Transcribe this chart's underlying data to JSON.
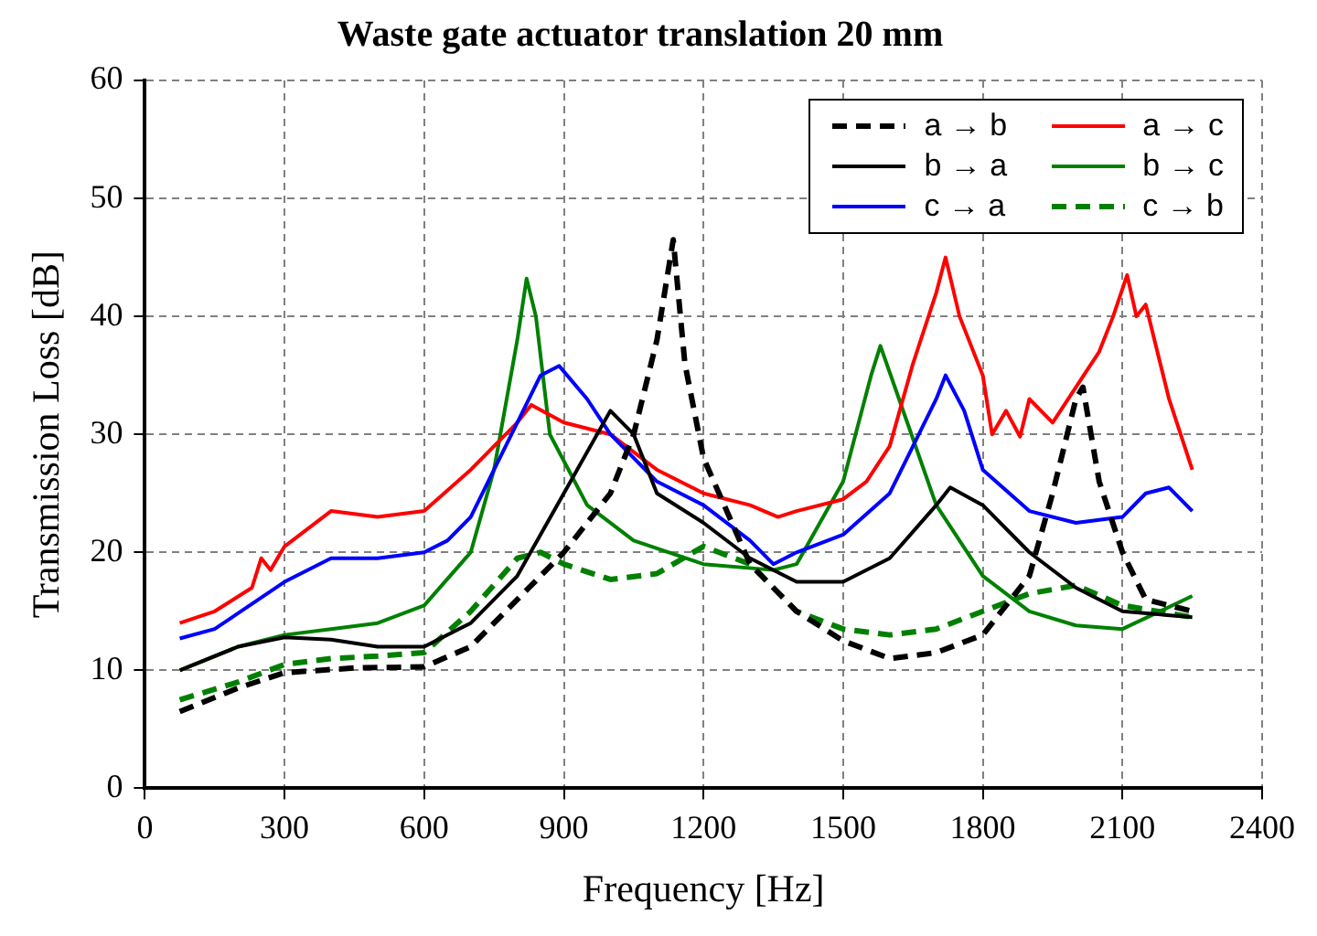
{
  "chart_data": {
    "type": "line",
    "title": "Waste gate actuator translation 20 mm",
    "xlabel": "Frequency [Hz]",
    "ylabel": "Transmission Loss [dB]",
    "xlim": [
      0,
      2400
    ],
    "xticks": [
      0,
      300,
      600,
      900,
      1200,
      1500,
      1800,
      2100,
      2400
    ],
    "ylim": [
      0,
      60
    ],
    "yticks": [
      0,
      10,
      20,
      30,
      40,
      50,
      60
    ],
    "grid": true,
    "legend": "top right",
    "marker": "none",
    "series": [
      {
        "name": "a → b",
        "color": "#000000",
        "line_style": "dashed",
        "x": [
          75,
          200,
          300,
          450,
          600,
          700,
          800,
          900,
          1000,
          1050,
          1100,
          1135,
          1160,
          1200,
          1300,
          1400,
          1500,
          1600,
          1700,
          1800,
          1900,
          1950,
          2000,
          2015,
          2050,
          2100,
          2150,
          2250
        ],
        "values": [
          6.5,
          8.5,
          9.8,
          10.2,
          10.3,
          12,
          16,
          20,
          25,
          30,
          38,
          46.5,
          36,
          28,
          19,
          15,
          12.5,
          11,
          11.5,
          13,
          18,
          25,
          33,
          34,
          26,
          20,
          16,
          15
        ]
      },
      {
        "name": "b → a",
        "color": "#000000",
        "line_style": "solid",
        "x": [
          75,
          200,
          300,
          400,
          500,
          600,
          700,
          800,
          900,
          1000,
          1050,
          1100,
          1200,
          1300,
          1400,
          1500,
          1600,
          1700,
          1730,
          1800,
          1900,
          2000,
          2100,
          2250
        ],
        "values": [
          10,
          12,
          12.8,
          12.6,
          12,
          12,
          14,
          18,
          25,
          32,
          30,
          25,
          22.5,
          19.5,
          17.5,
          17.5,
          19.5,
          24,
          25.5,
          24,
          20,
          17,
          15,
          14.5
        ]
      },
      {
        "name": "c → a",
        "color": "#0000ff",
        "line_style": "solid",
        "x": [
          75,
          150,
          300,
          400,
          500,
          600,
          650,
          700,
          750,
          800,
          850,
          890,
          950,
          1000,
          1100,
          1200,
          1300,
          1350,
          1400,
          1500,
          1600,
          1700,
          1720,
          1760,
          1800,
          1900,
          2000,
          2100,
          2150,
          2200,
          2250
        ],
        "values": [
          12.7,
          13.5,
          17.5,
          19.5,
          19.5,
          20,
          21,
          23,
          27,
          31,
          35,
          35.8,
          33,
          30,
          26,
          24,
          21,
          19,
          20,
          21.5,
          25,
          33,
          35,
          32,
          27,
          23.5,
          22.5,
          23,
          25,
          25.5,
          23.5
        ]
      },
      {
        "name": "a → c",
        "color": "#ff0000",
        "line_style": "solid",
        "x": [
          75,
          150,
          230,
          250,
          270,
          300,
          400,
          500,
          600,
          700,
          800,
          830,
          900,
          1000,
          1100,
          1200,
          1300,
          1360,
          1400,
          1500,
          1550,
          1600,
          1650,
          1700,
          1720,
          1750,
          1800,
          1820,
          1850,
          1880,
          1900,
          1950,
          2000,
          2050,
          2080,
          2110,
          2130,
          2150,
          2200,
          2250
        ],
        "values": [
          14,
          15,
          17,
          19.5,
          18.5,
          20.5,
          23.5,
          23,
          23.5,
          27,
          31,
          32.5,
          31,
          30,
          27,
          25,
          24,
          23,
          23.5,
          24.5,
          26,
          29,
          36,
          42,
          45,
          40,
          35,
          30,
          32,
          29.8,
          33,
          31,
          34,
          37,
          40,
          43.5,
          40,
          41,
          33,
          27
        ]
      },
      {
        "name": "b → c",
        "color": "#008000",
        "line_style": "solid",
        "x": [
          75,
          200,
          300,
          400,
          500,
          600,
          700,
          750,
          800,
          820,
          840,
          870,
          950,
          1050,
          1200,
          1350,
          1400,
          1500,
          1560,
          1580,
          1620,
          1700,
          1800,
          1900,
          2000,
          2100,
          2250
        ],
        "values": [
          10,
          12,
          13,
          13.5,
          14,
          15.5,
          20,
          27,
          38,
          43.2,
          40,
          30,
          24,
          21,
          19,
          18.5,
          19,
          26,
          35,
          37.5,
          33,
          24,
          18,
          15,
          13.8,
          13.5,
          16.3
        ]
      },
      {
        "name": "c → b",
        "color": "#008000",
        "line_style": "dashed",
        "x": [
          75,
          200,
          300,
          400,
          500,
          600,
          700,
          800,
          850,
          900,
          1000,
          1100,
          1200,
          1300,
          1350,
          1400,
          1500,
          1600,
          1700,
          1800,
          1900,
          2000,
          2100,
          2250
        ],
        "values": [
          7.5,
          9,
          10.5,
          11,
          11.2,
          11.5,
          15,
          19.5,
          20,
          19,
          17.7,
          18.2,
          20.5,
          19,
          17,
          15,
          13.5,
          13,
          13.5,
          15,
          16.5,
          17.2,
          15.5,
          14.5
        ]
      }
    ]
  }
}
